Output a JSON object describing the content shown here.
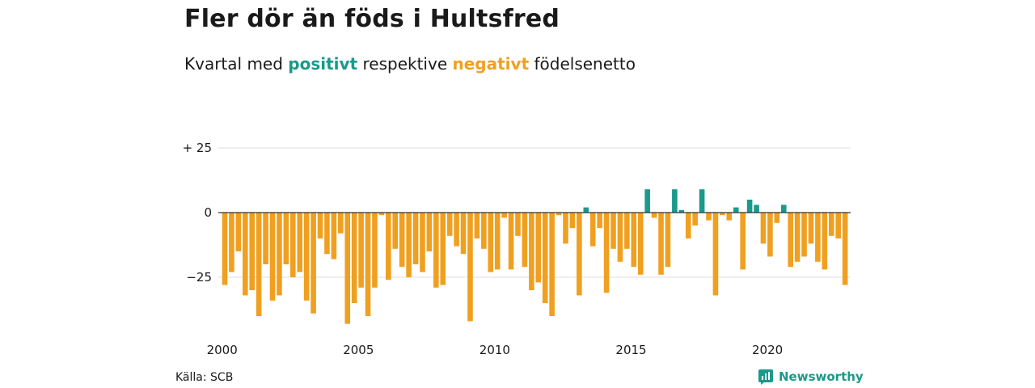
{
  "title": "Fler dör än föds i Hultsfred",
  "subtitle": {
    "prefix": "Kvartal med",
    "positive": "positivt",
    "middle": "respektive",
    "negative": "negativt",
    "suffix": "födelsenetto"
  },
  "source": "Källa: SCB",
  "brand": {
    "name": "Newsworthy",
    "icon": "newsworthy-logo-icon"
  },
  "colors": {
    "positive": "#1a9a8a",
    "negative": "#f0a020",
    "grid": "#dddddd",
    "zero": "#333333"
  },
  "chart_data": {
    "type": "bar",
    "title": "Fler dör än föds i Hultsfred",
    "subtitle": "Kvartal med positivt respektive negativt födelsenetto",
    "xlabel": "",
    "ylabel": "",
    "ylim": [
      -46,
      36
    ],
    "grid": true,
    "legend": "none",
    "yticks": [
      {
        "value": 25,
        "label": "+ 25"
      },
      {
        "value": 0,
        "label": "0"
      },
      {
        "value": -25,
        "label": "−25"
      }
    ],
    "xticks": [
      {
        "value": 2000,
        "label": "2000"
      },
      {
        "value": 2005,
        "label": "2005"
      },
      {
        "value": 2010,
        "label": "2010"
      },
      {
        "value": 2015,
        "label": "2015"
      },
      {
        "value": 2020,
        "label": "2020"
      }
    ],
    "start_year": 2000,
    "values": [
      -28,
      -23,
      -15,
      -32,
      -30,
      -40,
      -20,
      -34,
      -32,
      -20,
      -25,
      -23,
      -34,
      -39,
      -10,
      -16,
      -18,
      -8,
      -43,
      -35,
      -29,
      -40,
      -29,
      -1,
      -26,
      -14,
      -21,
      -25,
      -20,
      -23,
      -15,
      -29,
      -28,
      -9,
      -13,
      -16,
      -42,
      -10,
      -14,
      -23,
      -22,
      -2,
      -22,
      -9,
      -21,
      -30,
      -27,
      -35,
      -40,
      -1,
      -12,
      -6,
      -32,
      2,
      -13,
      -6,
      -31,
      -14,
      -19,
      -14,
      -21,
      -24,
      9,
      -2,
      -24,
      -21,
      9,
      1,
      -10,
      -5,
      9,
      -3,
      -32,
      -1,
      -3,
      2,
      -22,
      5,
      3,
      -12,
      -17,
      -4,
      3,
      -21,
      -19,
      -17,
      -12,
      -19,
      -22,
      -9,
      -10,
      -28
    ]
  }
}
